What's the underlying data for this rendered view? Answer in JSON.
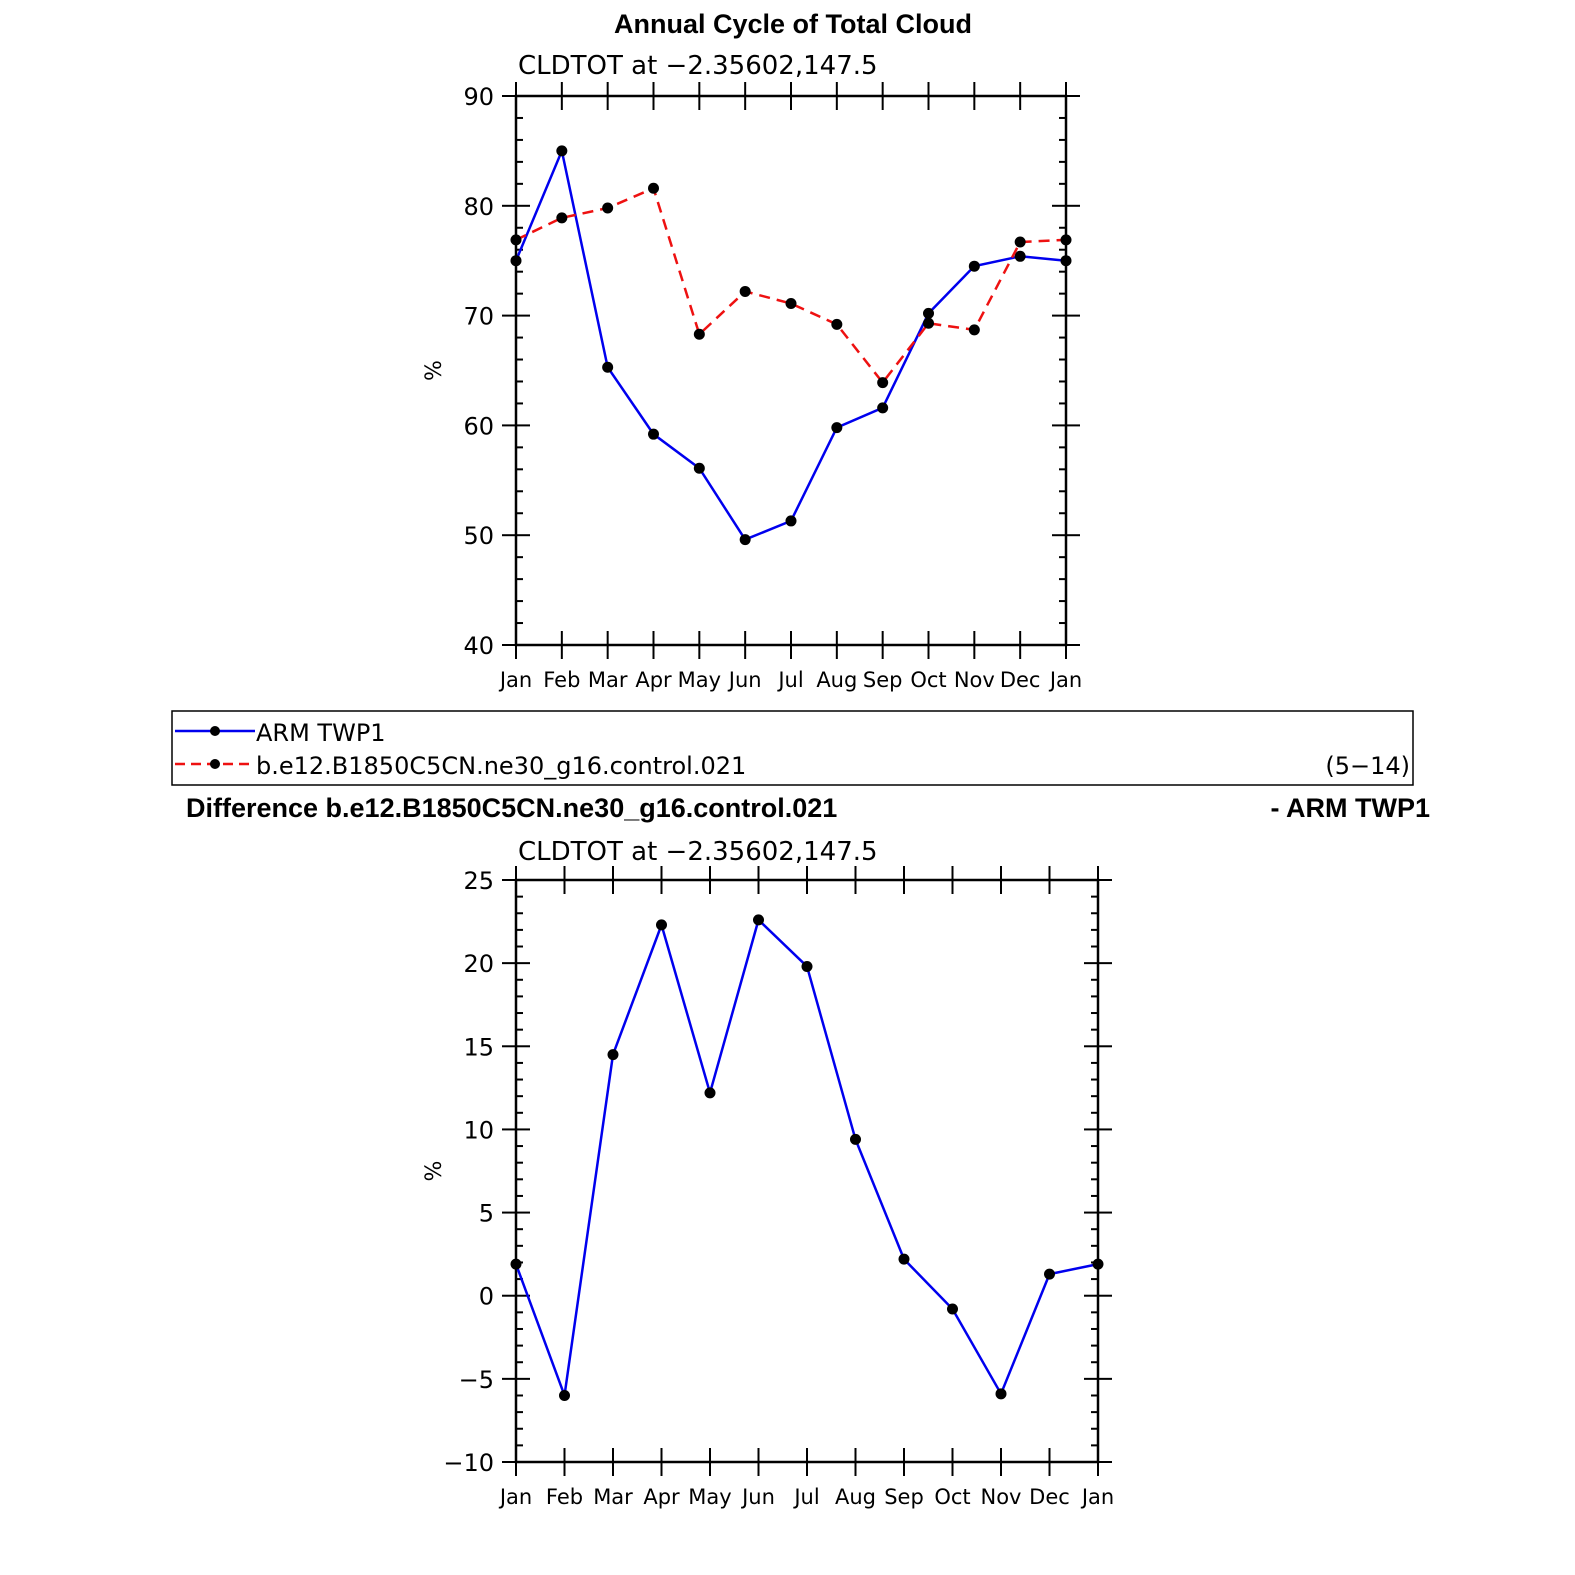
{
  "main_title": "Annual Cycle of Total Cloud",
  "diff_title": "Difference b.e12.B1850C5CN.ne30_g16.control.021",
  "diff_title_right": "- ARM TWP1",
  "legend": {
    "entries": [
      "ARM TWP1",
      "b.e12.B1850C5CN.ne30_g16.control.021"
    ],
    "range_label": "(5−14)"
  },
  "colors": {
    "obs": "#0000ee",
    "model": "#ee1111",
    "marker": "#000000",
    "axis": "#000000"
  },
  "chart_data": [
    {
      "type": "line",
      "subtitle": "CLDTOT at −2.35602,147.5",
      "ylabel": "%",
      "categories": [
        "Jan",
        "Feb",
        "Mar",
        "Apr",
        "May",
        "Jun",
        "Jul",
        "Aug",
        "Sep",
        "Oct",
        "Nov",
        "Dec",
        "Jan"
      ],
      "ylim": [
        40,
        90
      ],
      "yticks": [
        40,
        50,
        60,
        70,
        80,
        90
      ],
      "ytick_labels": [
        "40",
        "50",
        "60",
        "70",
        "80",
        "90"
      ],
      "series": [
        {
          "name": "ARM TWP1",
          "style": "solid",
          "color": "#0000ee",
          "values": [
            75.0,
            85.0,
            65.3,
            59.2,
            56.1,
            49.6,
            51.3,
            59.8,
            61.6,
            70.2,
            74.5,
            75.4,
            75.0
          ]
        },
        {
          "name": "b.e12.B1850C5CN.ne30_g16.control.021",
          "style": "dashed",
          "color": "#ee1111",
          "values": [
            76.9,
            78.9,
            79.8,
            81.6,
            68.3,
            72.2,
            71.1,
            69.2,
            63.9,
            69.3,
            68.7,
            76.7,
            76.9
          ]
        }
      ]
    },
    {
      "type": "line",
      "subtitle": "CLDTOT at −2.35602,147.5",
      "ylabel": "%",
      "categories": [
        "Jan",
        "Feb",
        "Mar",
        "Apr",
        "May",
        "Jun",
        "Jul",
        "Aug",
        "Sep",
        "Oct",
        "Nov",
        "Dec",
        "Jan"
      ],
      "ylim": [
        -10,
        25
      ],
      "yticks": [
        -10,
        -5,
        0,
        5,
        10,
        15,
        20,
        25
      ],
      "ytick_labels": [
        "−10",
        "−5",
        "0",
        "5",
        "10",
        "15",
        "20",
        "25"
      ],
      "series": [
        {
          "name": "Difference",
          "style": "solid",
          "color": "#0000ee",
          "values": [
            1.9,
            -6.0,
            14.5,
            22.3,
            12.2,
            22.6,
            19.8,
            9.4,
            2.2,
            -0.8,
            -5.9,
            1.3,
            1.9
          ]
        }
      ]
    }
  ]
}
